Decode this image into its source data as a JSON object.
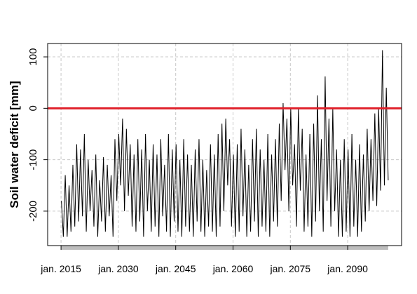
{
  "chart_data": {
    "type": "line",
    "y_label": "Soil water deficit [mm]",
    "xlim": [
      2011.5,
      2104.1
    ],
    "ylim": [
      -267,
      126
    ],
    "xticks": [
      {
        "value": 2015,
        "label": "jan. 2015"
      },
      {
        "value": 2030,
        "label": "jan. 2030"
      },
      {
        "value": 2045,
        "label": "jan. 2045"
      },
      {
        "value": 2060,
        "label": "jan. 2060"
      },
      {
        "value": 2075,
        "label": "jan. 2075"
      },
      {
        "value": 2090,
        "label": "jan. 2090"
      }
    ],
    "yticks": [
      -200,
      -100,
      0,
      100
    ],
    "grid": true,
    "hlines": [
      {
        "value": 0,
        "color": "#e0202a"
      }
    ],
    "series": [
      {
        "color": "#000000",
        "x": [
          2015.1,
          2015.6,
          2016.1,
          2016.6,
          2017.1,
          2017.6,
          2018.1,
          2018.6,
          2019.1,
          2019.6,
          2020.1,
          2020.6,
          2021.1,
          2021.6,
          2022.1,
          2022.6,
          2023.1,
          2023.6,
          2024.1,
          2024.6,
          2025.1,
          2025.6,
          2026.1,
          2026.6,
          2027.1,
          2027.6,
          2028.1,
          2028.6,
          2029.1,
          2029.6,
          2030.1,
          2030.6,
          2031.1,
          2031.6,
          2032.1,
          2032.6,
          2033.1,
          2033.6,
          2034.1,
          2034.6,
          2035.1,
          2035.6,
          2036.1,
          2036.6,
          2037.1,
          2037.6,
          2038.1,
          2038.6,
          2039.1,
          2039.6,
          2040.1,
          2040.6,
          2041.1,
          2041.6,
          2042.1,
          2042.6,
          2043.1,
          2043.6,
          2044.1,
          2044.6,
          2045.1,
          2045.6,
          2046.1,
          2046.6,
          2047.1,
          2047.6,
          2048.1,
          2048.6,
          2049.1,
          2049.6,
          2050.1,
          2050.6,
          2051.1,
          2051.6,
          2052.1,
          2052.6,
          2053.1,
          2053.6,
          2054.1,
          2054.6,
          2055.1,
          2055.6,
          2056.1,
          2056.6,
          2057.1,
          2057.6,
          2058.1,
          2058.6,
          2059.1,
          2059.6,
          2060.1,
          2060.6,
          2061.1,
          2061.6,
          2062.1,
          2062.6,
          2063.1,
          2063.6,
          2064.1,
          2064.6,
          2065.1,
          2065.6,
          2066.1,
          2066.6,
          2067.1,
          2067.6,
          2068.1,
          2068.6,
          2069.1,
          2069.6,
          2070.1,
          2070.6,
          2071.1,
          2071.6,
          2072.1,
          2072.6,
          2073.1,
          2073.6,
          2074.1,
          2074.6,
          2075.1,
          2075.6,
          2076.1,
          2076.6,
          2077.1,
          2077.6,
          2078.1,
          2078.6,
          2079.1,
          2079.6,
          2080.1,
          2080.6,
          2081.1,
          2081.6,
          2082.1,
          2082.6,
          2083.1,
          2083.6,
          2084.1,
          2084.6,
          2085.1,
          2085.6,
          2086.1,
          2086.6,
          2087.1,
          2087.6,
          2088.1,
          2088.6,
          2089.1,
          2089.6,
          2090.1,
          2090.6,
          2091.1,
          2091.6,
          2092.1,
          2092.6,
          2093.1,
          2093.6,
          2094.1,
          2094.6,
          2095.1,
          2095.6,
          2096.1,
          2096.6,
          2097.1,
          2097.6,
          2098.1,
          2098.6,
          2099.1,
          2099.6,
          2100.1,
          2100.6
        ],
        "values": [
          -180,
          -250,
          -130,
          -250,
          -150,
          -240,
          -110,
          -230,
          -70,
          -220,
          -80,
          -210,
          -50,
          -240,
          -100,
          -200,
          -120,
          -230,
          -90,
          -250,
          -140,
          -220,
          -95,
          -240,
          -110,
          -210,
          -130,
          -250,
          -60,
          -180,
          -50,
          -150,
          -20,
          -200,
          -40,
          -170,
          -70,
          -230,
          -90,
          -240,
          -60,
          -220,
          -80,
          -250,
          -50,
          -200,
          -100,
          -240,
          -70,
          -230,
          -90,
          -250,
          -60,
          -210,
          -110,
          -240,
          -50,
          -250,
          -80,
          -220,
          -70,
          -240,
          -100,
          -250,
          -60,
          -230,
          -90,
          -240,
          -110,
          -250,
          -80,
          -220,
          -60,
          -240,
          -100,
          -250,
          -120,
          -230,
          -70,
          -240,
          -90,
          -250,
          -50,
          -230,
          -30,
          -200,
          -20,
          -150,
          -60,
          -230,
          -90,
          -250,
          -70,
          -240,
          -40,
          -210,
          -80,
          -250,
          -110,
          -240,
          -60,
          -220,
          -40,
          -250,
          -80,
          -230,
          -100,
          -240,
          -50,
          -250,
          -90,
          -220,
          -60,
          -230,
          -30,
          -180,
          10,
          -120,
          -20,
          -200,
          0,
          -150,
          -70,
          -230,
          0,
          -160,
          -40,
          -240,
          -90,
          -230,
          -50,
          -250,
          -30,
          -220,
          25,
          -200,
          -60,
          -240,
          62,
          -180,
          -20,
          -230,
          0,
          -200,
          -80,
          -250,
          -100,
          -250,
          -60,
          -240,
          -80,
          -250,
          -50,
          -230,
          -100,
          -250,
          -70,
          -240,
          -90,
          -220,
          -40,
          -200,
          -60,
          -180,
          -10,
          -190,
          0,
          -160,
          113,
          -150,
          40,
          -140
        ]
      }
    ]
  }
}
